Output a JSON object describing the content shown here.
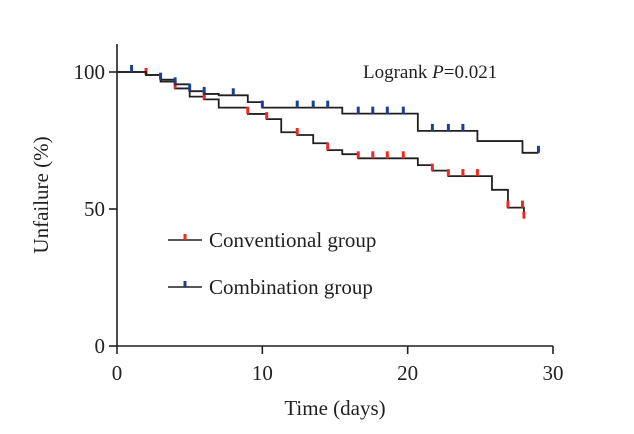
{
  "chart_data": {
    "type": "line",
    "subtype": "kaplan-meier-step",
    "title": "",
    "xlabel": "Time (days)",
    "ylabel": "Unfailure (%)",
    "xlim": [
      0,
      30
    ],
    "ylim": [
      0,
      110
    ],
    "xticks": [
      0,
      10,
      20,
      30
    ],
    "xtick_labels": [
      "0",
      "10",
      "20",
      "30"
    ],
    "yticks": [
      0,
      50,
      100
    ],
    "ytick_labels": [
      "0",
      "50",
      "100"
    ],
    "grid": false,
    "legend_position": "center-left",
    "annotation": {
      "prefix": "Logrank ",
      "italic": "P",
      "suffix": "=0.021"
    },
    "series": [
      {
        "name": "Conventional group",
        "color": "#ee2a24",
        "line_color": "#231f20",
        "steps": [
          [
            0,
            100
          ],
          [
            2,
            98.9
          ],
          [
            3,
            96.5
          ],
          [
            4,
            94
          ],
          [
            5,
            91
          ],
          [
            6,
            90
          ],
          [
            7,
            87
          ],
          [
            9,
            84.7
          ],
          [
            10.3,
            82.8
          ],
          [
            11.3,
            78
          ],
          [
            12.4,
            77
          ],
          [
            13.5,
            74
          ],
          [
            14.5,
            71.5
          ],
          [
            15.5,
            70
          ],
          [
            16.6,
            68.5
          ],
          [
            20.7,
            66
          ],
          [
            21.7,
            64
          ],
          [
            22.8,
            62
          ],
          [
            25.8,
            57
          ],
          [
            26.9,
            50.5
          ],
          [
            28,
            46.5
          ]
        ],
        "end_x": 28,
        "censored": [
          2,
          4,
          6,
          9,
          10.3,
          12.4,
          14.5,
          16.6,
          17.6,
          18.6,
          19.7,
          21.7,
          22.8,
          23.8,
          24.8,
          26.9,
          27.9,
          28
        ]
      },
      {
        "name": "Combination group",
        "color": "#1c3f94",
        "line_color": "#231f20",
        "steps": [
          [
            0,
            100
          ],
          [
            2,
            98.9
          ],
          [
            3,
            97.2
          ],
          [
            4,
            95.5
          ],
          [
            5,
            93
          ],
          [
            6,
            92
          ],
          [
            7,
            91.5
          ],
          [
            9,
            89
          ],
          [
            10,
            87
          ],
          [
            15.5,
            84.8
          ],
          [
            20.7,
            78.5
          ],
          [
            24.8,
            74.8
          ],
          [
            27.9,
            70.5
          ]
        ],
        "end_x": 29,
        "censored": [
          1,
          3,
          4,
          5,
          6,
          8,
          10,
          12.4,
          13.5,
          14.5,
          16.6,
          17.6,
          18.6,
          19.7,
          21.7,
          22.8,
          23.8,
          29
        ]
      }
    ]
  }
}
